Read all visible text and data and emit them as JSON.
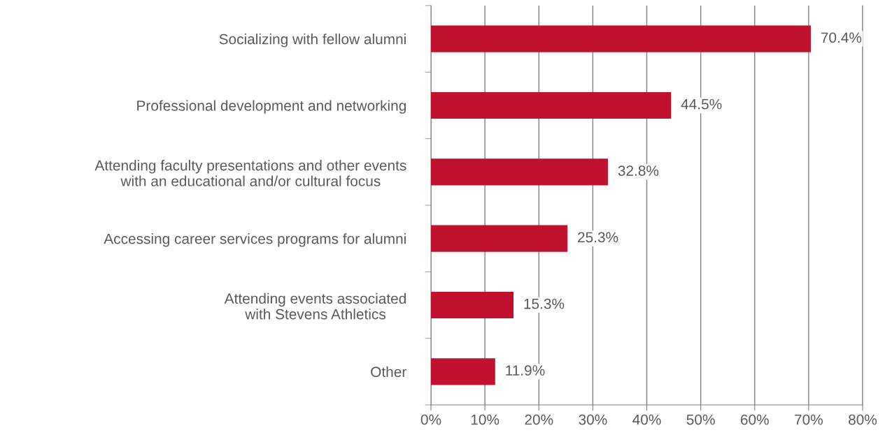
{
  "chart_data": {
    "type": "bar",
    "orientation": "horizontal",
    "categories": [
      "Socializing with fellow alumni",
      "Professional development and networking",
      "Attending faculty presentations and other events\nwith an educational and/or cultural focus",
      "Accessing career services programs for alumni",
      "Attending events associated\nwith Stevens Athletics",
      "Other"
    ],
    "values": [
      70.4,
      44.5,
      32.8,
      25.3,
      15.3,
      11.9
    ],
    "value_labels": [
      "70.4%",
      "44.5%",
      "32.8%",
      "25.3%",
      "15.3%",
      "11.9%"
    ],
    "color": "#c0112f",
    "xlim": [
      0,
      80
    ],
    "xticks": [
      {
        "value": 0,
        "label": "0%"
      },
      {
        "value": 10,
        "label": "10%"
      },
      {
        "value": 20,
        "label": "20%"
      },
      {
        "value": 30,
        "label": "30%"
      },
      {
        "value": 40,
        "label": "40%"
      },
      {
        "value": 50,
        "label": "50%"
      },
      {
        "value": 60,
        "label": "60%"
      },
      {
        "value": 70,
        "label": "70%"
      },
      {
        "value": 80,
        "label": "80%"
      }
    ],
    "grid": "x"
  }
}
